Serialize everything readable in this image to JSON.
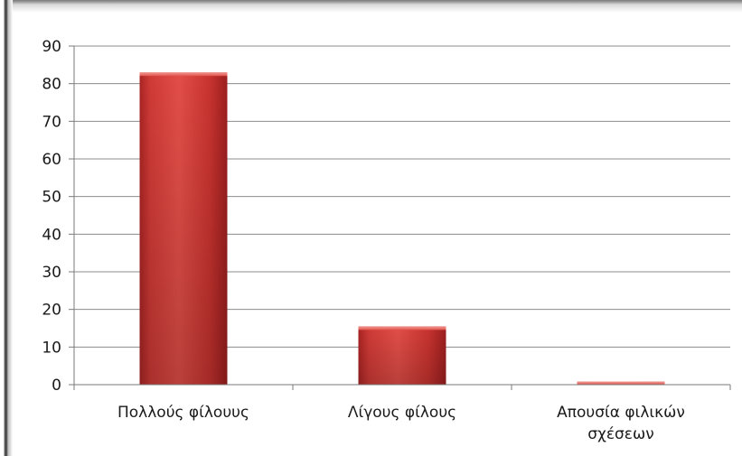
{
  "chart_data": {
    "type": "bar",
    "categories": [
      "Πολλούς φίλουυς",
      "Λίγους φίλους",
      "Απουσία φιλικών σχέσεων"
    ],
    "values": [
      83,
      15.5,
      0.8
    ],
    "title": "",
    "xlabel": "",
    "ylabel": "",
    "ylim": [
      0,
      90
    ],
    "yticks": [
      0,
      10,
      20,
      30,
      40,
      50,
      60,
      70,
      80,
      90
    ],
    "grid": true,
    "legend": "none",
    "bar_color": "#d64541"
  }
}
